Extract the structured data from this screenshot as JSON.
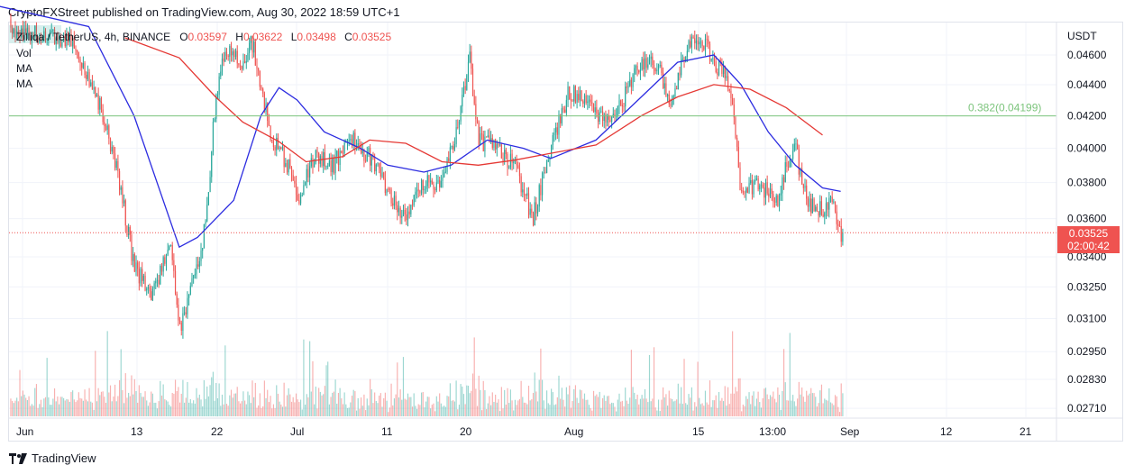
{
  "header": {
    "publisher_line": "CryptoFXStreet published on TradingView.com, Aug 30, 2022 18:59 UTC+1"
  },
  "legend": {
    "symbol": "Zilliqa / TetherUS, 4h, BINANCE",
    "open_label": "O",
    "open": "0.03597",
    "high_label": "H",
    "high": "0.03622",
    "low_label": "L",
    "low": "0.03498",
    "close_label": "C",
    "close": "0.03525",
    "vol_label": "Vol",
    "ma1_label": "MA",
    "ma2_label": "MA"
  },
  "price_tag": {
    "price": "0.03525",
    "countdown": "02:00:42"
  },
  "footer": {
    "brand": "TradingView"
  },
  "colors": {
    "up": "#26a69a",
    "down": "#ef5350",
    "ma_fast": "#2c2ce0",
    "ma_slow": "#e53935",
    "fib": "#7cc47c",
    "grid": "#f0f3fa",
    "axis_text": "#131722"
  },
  "chart_data": {
    "type": "candlestick",
    "title": "Zilliqa / TetherUS, 4h, BINANCE",
    "y_axis": {
      "unit_label": "USDT",
      "scale": "log",
      "range": [
        0.0265,
        0.049
      ],
      "ticks": [
        "0.04600",
        "0.04400",
        "0.04200",
        "0.04000",
        "0.03800",
        "0.03600",
        "0.03400",
        "0.03250",
        "0.03100",
        "0.02950",
        "0.02830",
        "0.02710"
      ]
    },
    "x_axis": {
      "labels": [
        "Jun",
        "13",
        "22",
        "Jul",
        "11",
        "20",
        "Aug",
        "15",
        "13:00",
        "Sep",
        "12",
        "21"
      ]
    },
    "last_price": 0.03525,
    "fib_level": {
      "ratio": "0.382",
      "value": "0.04199",
      "label": "0.382(0.04199)"
    },
    "ohlc_last": {
      "open": 0.03597,
      "high": 0.03622,
      "low": 0.03498,
      "close": 0.03525
    },
    "path_keypoints": [
      [
        "May 29",
        0.048
      ],
      [
        "Jun 6",
        0.047
      ],
      [
        "Jun 9",
        0.043
      ],
      [
        "Jun 11",
        0.039
      ],
      [
        "Jun 13",
        0.0335
      ],
      [
        "Jun 15",
        0.032
      ],
      [
        "Jun 17",
        0.0345
      ],
      [
        "Jun 18",
        0.0305
      ],
      [
        "Jun 20",
        0.0335
      ],
      [
        "Jun 21",
        0.036
      ],
      [
        "Jun 22",
        0.043
      ],
      [
        "Jun 23",
        0.0465
      ],
      [
        "Jun 25",
        0.0455
      ],
      [
        "Jun 26",
        0.047
      ],
      [
        "Jun 28",
        0.041
      ],
      [
        "Jun 30",
        0.039
      ],
      [
        "Jul 1",
        0.037
      ],
      [
        "Jul 3",
        0.0395
      ],
      [
        "Jul 5",
        0.039
      ],
      [
        "Jul 7",
        0.0405
      ],
      [
        "Jul 9",
        0.0395
      ],
      [
        "Jul 11",
        0.0375
      ],
      [
        "Jul 13",
        0.036
      ],
      [
        "Jul 15",
        0.038
      ],
      [
        "Jul 17",
        0.0378
      ],
      [
        "Jul 19",
        0.042
      ],
      [
        "Jul 20",
        0.046
      ],
      [
        "Jul 21",
        0.0405
      ],
      [
        "Jul 23",
        0.04
      ],
      [
        "Jul 25",
        0.039
      ],
      [
        "Jul 27",
        0.036
      ],
      [
        "Jul 29",
        0.04
      ],
      [
        "Jul 31",
        0.0435
      ],
      [
        "Aug 2",
        0.043
      ],
      [
        "Aug 4",
        0.0415
      ],
      [
        "Aug 6",
        0.043
      ],
      [
        "Aug 8",
        0.0455
      ],
      [
        "Aug 10",
        0.0455
      ],
      [
        "Aug 11",
        0.0425
      ],
      [
        "Aug 13",
        0.0465
      ],
      [
        "Aug 15",
        0.047
      ],
      [
        "Aug 16",
        0.0455
      ],
      [
        "Aug 17",
        0.0448
      ],
      [
        "Aug 18",
        0.043
      ],
      [
        "Aug 19",
        0.0375
      ],
      [
        "Aug 21",
        0.0378
      ],
      [
        "Aug 23",
        0.037
      ],
      [
        "Aug 24",
        0.039
      ],
      [
        "Aug 25",
        0.04
      ],
      [
        "Aug 26",
        0.0375
      ],
      [
        "Aug 27",
        0.0365
      ],
      [
        "Aug 28",
        0.0365
      ],
      [
        "Aug 29",
        0.0372
      ],
      [
        "Aug 30",
        0.03525
      ]
    ],
    "ma_fast_keypoints": [
      [
        "May 29",
        0.0495
      ],
      [
        "Jun 8",
        0.048
      ],
      [
        "Jun 13",
        0.042
      ],
      [
        "Jun 18",
        0.0345
      ],
      [
        "Jun 20",
        0.035
      ],
      [
        "Jun 24",
        0.037
      ],
      [
        "Jun 27",
        0.042
      ],
      [
        "Jun 29",
        0.0438
      ],
      [
        "Jul 1",
        0.043
      ],
      [
        "Jul 4",
        0.041
      ],
      [
        "Jul 8",
        0.04
      ],
      [
        "Jul 11",
        0.039
      ],
      [
        "Jul 15",
        0.0386
      ],
      [
        "Jul 18",
        0.039
      ],
      [
        "Jul 22",
        0.0405
      ],
      [
        "Jul 26",
        0.04
      ],
      [
        "Jul 29",
        0.0394
      ],
      [
        "Aug 3",
        0.0405
      ],
      [
        "Aug 8",
        0.0432
      ],
      [
        "Aug 12",
        0.0455
      ],
      [
        "Aug 16",
        0.046
      ],
      [
        "Aug 19",
        0.044
      ],
      [
        "Aug 22",
        0.041
      ],
      [
        "Aug 25",
        0.039
      ],
      [
        "Aug 28",
        0.0377
      ],
      [
        "Aug 30",
        0.0375
      ]
    ],
    "ma_slow_keypoints": [
      [
        "Jun 12",
        0.0472
      ],
      [
        "Jun 18",
        0.0458
      ],
      [
        "Jun 22",
        0.0432
      ],
      [
        "Jun 25",
        0.0416
      ],
      [
        "Jun 29",
        0.0404
      ],
      [
        "Jul 2",
        0.0392
      ],
      [
        "Jul 6",
        0.0395
      ],
      [
        "Jul 9",
        0.0405
      ],
      [
        "Jul 13",
        0.0403
      ],
      [
        "Jul 17",
        0.0392
      ],
      [
        "Jul 21",
        0.039
      ],
      [
        "Jul 25",
        0.0393
      ],
      [
        "Jul 29",
        0.0397
      ],
      [
        "Aug 3",
        0.0402
      ],
      [
        "Aug 8",
        0.042
      ],
      [
        "Aug 12",
        0.0432
      ],
      [
        "Aug 16",
        0.044
      ],
      [
        "Aug 20",
        0.0437
      ],
      [
        "Aug 24",
        0.0425
      ],
      [
        "Aug 28",
        0.0408
      ]
    ]
  }
}
